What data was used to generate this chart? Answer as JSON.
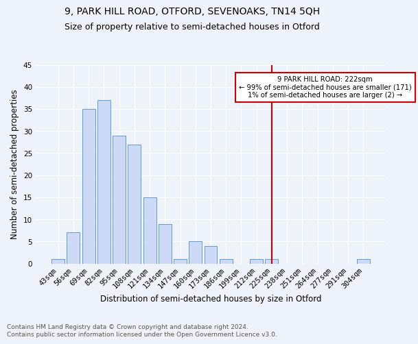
{
  "title": "9, PARK HILL ROAD, OTFORD, SEVENOAKS, TN14 5QH",
  "subtitle": "Size of property relative to semi-detached houses in Otford",
  "xlabel": "Distribution of semi-detached houses by size in Otford",
  "ylabel": "Number of semi-detached properties",
  "bar_labels": [
    "43sqm",
    "56sqm",
    "69sqm",
    "82sqm",
    "95sqm",
    "108sqm",
    "121sqm",
    "134sqm",
    "147sqm",
    "160sqm",
    "173sqm",
    "186sqm",
    "199sqm",
    "212sqm",
    "225sqm",
    "238sqm",
    "251sqm",
    "264sqm",
    "277sqm",
    "291sqm",
    "304sqm"
  ],
  "bar_values": [
    1,
    7,
    35,
    37,
    29,
    27,
    15,
    9,
    1,
    5,
    4,
    1,
    0,
    1,
    1,
    0,
    0,
    0,
    0,
    0,
    1
  ],
  "bar_color": "#ccdaf5",
  "bar_edge_color": "#6699cc",
  "vline_x": 14,
  "vline_color": "#cc0000",
  "annotation_title": "9 PARK HILL ROAD: 222sqm",
  "annotation_line1": "← 99% of semi-detached houses are smaller (171)",
  "annotation_line2": "1% of semi-detached houses are larger (2) →",
  "annotation_box_color": "#ffffff",
  "annotation_edge_color": "#cc0000",
  "ylim": [
    0,
    45
  ],
  "yticks": [
    0,
    5,
    10,
    15,
    20,
    25,
    30,
    35,
    40,
    45
  ],
  "footnote": "Contains HM Land Registry data © Crown copyright and database right 2024.\nContains public sector information licensed under the Open Government Licence v3.0.",
  "bg_color": "#eef2f9",
  "title_fontsize": 10,
  "subtitle_fontsize": 9,
  "axis_label_fontsize": 8.5,
  "tick_fontsize": 7.5,
  "footnote_fontsize": 6.5
}
